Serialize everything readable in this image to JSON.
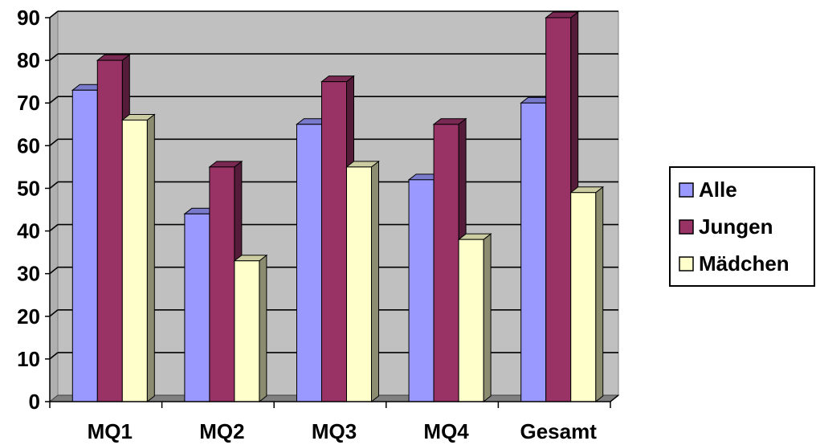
{
  "chart_data": {
    "type": "bar",
    "style": "3d-clustered-column",
    "categories": [
      "MQ1",
      "MQ2",
      "MQ3",
      "MQ4",
      "Gesamt"
    ],
    "series": [
      {
        "name": "Alle",
        "values": [
          73,
          44,
          65,
          52,
          70
        ],
        "color": "#9999FF"
      },
      {
        "name": "Jungen",
        "values": [
          80,
          55,
          75,
          65,
          90
        ],
        "color": "#993366"
      },
      {
        "name": "Mädchen",
        "values": [
          66,
          33,
          55,
          38,
          49
        ],
        "color": "#FFFFCC"
      }
    ],
    "ylim": [
      0,
      90
    ],
    "yticks": [
      "0",
      "10",
      "20",
      "30",
      "40",
      "50",
      "60",
      "70",
      "80",
      "90"
    ],
    "grid": true,
    "legend_position": "right",
    "wall_color": "#C0C0C0"
  }
}
